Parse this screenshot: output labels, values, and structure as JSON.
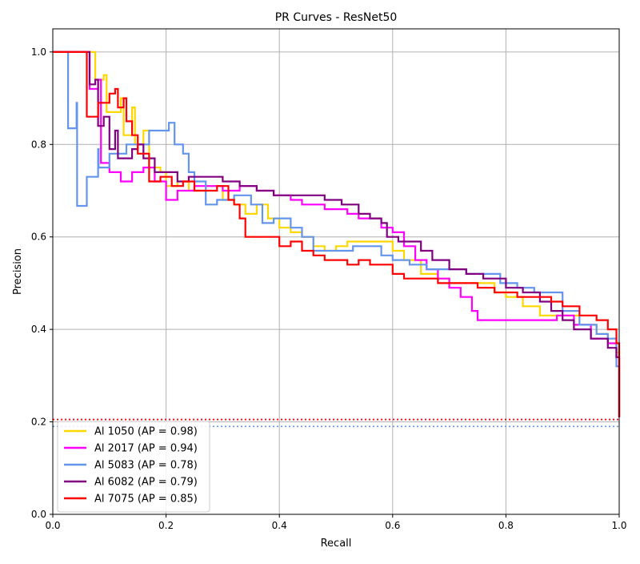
{
  "chart_data": {
    "type": "line",
    "title": "PR Curves - ResNet50",
    "xlabel": "Recall",
    "ylabel": "Precision",
    "xlim": [
      0.0,
      1.0
    ],
    "ylim": [
      0.0,
      1.05
    ],
    "xticks": [
      "0.0",
      "0.2",
      "0.4",
      "0.6",
      "0.8",
      "1.0"
    ],
    "yticks": [
      "0.0",
      "0.2",
      "0.4",
      "0.6",
      "0.8",
      "1.0"
    ],
    "grid": true,
    "legend_position": "lower-left",
    "series": [
      {
        "name": "Al 1050 (AP = 0.98)",
        "color": "#FFD700",
        "baseline": 0.205,
        "points": [
          [
            0.0,
            1.0
          ],
          [
            0.07,
            1.0
          ],
          [
            0.075,
            0.94
          ],
          [
            0.09,
            0.95
          ],
          [
            0.095,
            0.87
          ],
          [
            0.12,
            0.9
          ],
          [
            0.125,
            0.82
          ],
          [
            0.14,
            0.88
          ],
          [
            0.145,
            0.8
          ],
          [
            0.16,
            0.83
          ],
          [
            0.17,
            0.75
          ],
          [
            0.19,
            0.74
          ],
          [
            0.2,
            0.71
          ],
          [
            0.22,
            0.72
          ],
          [
            0.24,
            0.7
          ],
          [
            0.27,
            0.71
          ],
          [
            0.3,
            0.68
          ],
          [
            0.32,
            0.67
          ],
          [
            0.34,
            0.65
          ],
          [
            0.36,
            0.67
          ],
          [
            0.38,
            0.64
          ],
          [
            0.4,
            0.62
          ],
          [
            0.42,
            0.61
          ],
          [
            0.44,
            0.6
          ],
          [
            0.46,
            0.58
          ],
          [
            0.48,
            0.57
          ],
          [
            0.5,
            0.58
          ],
          [
            0.52,
            0.59
          ],
          [
            0.55,
            0.59
          ],
          [
            0.58,
            0.59
          ],
          [
            0.6,
            0.57
          ],
          [
            0.62,
            0.55
          ],
          [
            0.65,
            0.52
          ],
          [
            0.68,
            0.51
          ],
          [
            0.7,
            0.5
          ],
          [
            0.74,
            0.5
          ],
          [
            0.78,
            0.48
          ],
          [
            0.8,
            0.47
          ],
          [
            0.83,
            0.45
          ],
          [
            0.86,
            0.43
          ],
          [
            0.9,
            0.43
          ],
          [
            0.93,
            0.41
          ],
          [
            0.96,
            0.39
          ],
          [
            0.98,
            0.37
          ],
          [
            0.995,
            0.35
          ],
          [
            1.0,
            0.21
          ]
        ]
      },
      {
        "name": "Al 2017 (AP = 0.94)",
        "color": "#FF00FF",
        "baseline": 0.205,
        "points": [
          [
            0.0,
            1.0
          ],
          [
            0.06,
            1.0
          ],
          [
            0.065,
            0.92
          ],
          [
            0.08,
            0.94
          ],
          [
            0.085,
            0.76
          ],
          [
            0.1,
            0.74
          ],
          [
            0.12,
            0.72
          ],
          [
            0.14,
            0.74
          ],
          [
            0.16,
            0.75
          ],
          [
            0.18,
            0.72
          ],
          [
            0.2,
            0.68
          ],
          [
            0.22,
            0.7
          ],
          [
            0.25,
            0.71
          ],
          [
            0.28,
            0.71
          ],
          [
            0.3,
            0.7
          ],
          [
            0.33,
            0.71
          ],
          [
            0.36,
            0.7
          ],
          [
            0.39,
            0.69
          ],
          [
            0.42,
            0.68
          ],
          [
            0.44,
            0.67
          ],
          [
            0.46,
            0.67
          ],
          [
            0.48,
            0.66
          ],
          [
            0.5,
            0.66
          ],
          [
            0.52,
            0.65
          ],
          [
            0.54,
            0.64
          ],
          [
            0.56,
            0.64
          ],
          [
            0.58,
            0.62
          ],
          [
            0.6,
            0.61
          ],
          [
            0.62,
            0.58
          ],
          [
            0.64,
            0.55
          ],
          [
            0.66,
            0.53
          ],
          [
            0.68,
            0.51
          ],
          [
            0.7,
            0.49
          ],
          [
            0.72,
            0.47
          ],
          [
            0.74,
            0.44
          ],
          [
            0.75,
            0.42
          ],
          [
            0.77,
            0.42
          ],
          [
            0.8,
            0.42
          ],
          [
            0.83,
            0.42
          ],
          [
            0.86,
            0.42
          ],
          [
            0.89,
            0.43
          ],
          [
            0.92,
            0.41
          ],
          [
            0.95,
            0.38
          ],
          [
            0.98,
            0.37
          ],
          [
            0.995,
            0.34
          ],
          [
            1.0,
            0.21
          ]
        ]
      },
      {
        "name": "Al 5083 (AP = 0.78)",
        "color": "#6495ED",
        "baseline": 0.19,
        "points": [
          [
            0.0,
            1.0
          ],
          [
            0.025,
            1.0
          ],
          [
            0.027,
            0.835
          ],
          [
            0.042,
            0.89
          ],
          [
            0.043,
            0.667
          ],
          [
            0.06,
            0.73
          ],
          [
            0.08,
            0.79
          ],
          [
            0.081,
            0.75
          ],
          [
            0.1,
            0.78
          ],
          [
            0.13,
            0.8
          ],
          [
            0.17,
            0.83
          ],
          [
            0.205,
            0.847
          ],
          [
            0.215,
            0.8
          ],
          [
            0.23,
            0.78
          ],
          [
            0.24,
            0.74
          ],
          [
            0.25,
            0.72
          ],
          [
            0.27,
            0.67
          ],
          [
            0.29,
            0.68
          ],
          [
            0.32,
            0.69
          ],
          [
            0.35,
            0.67
          ],
          [
            0.37,
            0.63
          ],
          [
            0.39,
            0.64
          ],
          [
            0.42,
            0.62
          ],
          [
            0.44,
            0.6
          ],
          [
            0.46,
            0.57
          ],
          [
            0.5,
            0.57
          ],
          [
            0.53,
            0.58
          ],
          [
            0.56,
            0.58
          ],
          [
            0.58,
            0.56
          ],
          [
            0.6,
            0.55
          ],
          [
            0.63,
            0.54
          ],
          [
            0.66,
            0.53
          ],
          [
            0.7,
            0.53
          ],
          [
            0.73,
            0.52
          ],
          [
            0.76,
            0.52
          ],
          [
            0.79,
            0.5
          ],
          [
            0.82,
            0.49
          ],
          [
            0.85,
            0.48
          ],
          [
            0.88,
            0.48
          ],
          [
            0.9,
            0.44
          ],
          [
            0.92,
            0.44
          ],
          [
            0.93,
            0.41
          ],
          [
            0.96,
            0.39
          ],
          [
            0.98,
            0.38
          ],
          [
            0.995,
            0.32
          ],
          [
            1.0,
            0.21
          ]
        ]
      },
      {
        "name": "Al 6082 (AP = 0.79)",
        "color": "#800080",
        "baseline": 0.205,
        "points": [
          [
            0.0,
            1.0
          ],
          [
            0.06,
            1.0
          ],
          [
            0.065,
            0.93
          ],
          [
            0.075,
            0.94
          ],
          [
            0.08,
            0.84
          ],
          [
            0.09,
            0.86
          ],
          [
            0.1,
            0.79
          ],
          [
            0.11,
            0.83
          ],
          [
            0.115,
            0.77
          ],
          [
            0.14,
            0.79
          ],
          [
            0.15,
            0.8
          ],
          [
            0.16,
            0.77
          ],
          [
            0.18,
            0.74
          ],
          [
            0.2,
            0.74
          ],
          [
            0.22,
            0.72
          ],
          [
            0.24,
            0.73
          ],
          [
            0.27,
            0.73
          ],
          [
            0.3,
            0.72
          ],
          [
            0.33,
            0.71
          ],
          [
            0.36,
            0.7
          ],
          [
            0.39,
            0.69
          ],
          [
            0.42,
            0.69
          ],
          [
            0.45,
            0.69
          ],
          [
            0.48,
            0.68
          ],
          [
            0.51,
            0.67
          ],
          [
            0.54,
            0.65
          ],
          [
            0.56,
            0.64
          ],
          [
            0.58,
            0.63
          ],
          [
            0.59,
            0.6
          ],
          [
            0.61,
            0.59
          ],
          [
            0.63,
            0.59
          ],
          [
            0.65,
            0.57
          ],
          [
            0.67,
            0.55
          ],
          [
            0.7,
            0.53
          ],
          [
            0.73,
            0.52
          ],
          [
            0.76,
            0.51
          ],
          [
            0.8,
            0.49
          ],
          [
            0.83,
            0.48
          ],
          [
            0.86,
            0.46
          ],
          [
            0.88,
            0.44
          ],
          [
            0.9,
            0.42
          ],
          [
            0.92,
            0.4
          ],
          [
            0.95,
            0.38
          ],
          [
            0.98,
            0.36
          ],
          [
            0.995,
            0.34
          ],
          [
            1.0,
            0.21
          ]
        ]
      },
      {
        "name": "Al 7075 (AP = 0.85)",
        "color": "#FF0000",
        "baseline": 0.205,
        "points": [
          [
            0.0,
            1.0
          ],
          [
            0.058,
            1.0
          ],
          [
            0.06,
            0.86
          ],
          [
            0.08,
            0.89
          ],
          [
            0.1,
            0.91
          ],
          [
            0.11,
            0.92
          ],
          [
            0.115,
            0.88
          ],
          [
            0.125,
            0.9
          ],
          [
            0.13,
            0.85
          ],
          [
            0.14,
            0.82
          ],
          [
            0.15,
            0.78
          ],
          [
            0.17,
            0.72
          ],
          [
            0.19,
            0.73
          ],
          [
            0.21,
            0.71
          ],
          [
            0.23,
            0.72
          ],
          [
            0.25,
            0.7
          ],
          [
            0.27,
            0.7
          ],
          [
            0.29,
            0.71
          ],
          [
            0.31,
            0.68
          ],
          [
            0.32,
            0.67
          ],
          [
            0.33,
            0.64
          ],
          [
            0.34,
            0.6
          ],
          [
            0.37,
            0.6
          ],
          [
            0.39,
            0.6
          ],
          [
            0.4,
            0.58
          ],
          [
            0.42,
            0.59
          ],
          [
            0.44,
            0.57
          ],
          [
            0.46,
            0.56
          ],
          [
            0.48,
            0.55
          ],
          [
            0.5,
            0.55
          ],
          [
            0.52,
            0.54
          ],
          [
            0.54,
            0.55
          ],
          [
            0.56,
            0.54
          ],
          [
            0.58,
            0.54
          ],
          [
            0.6,
            0.52
          ],
          [
            0.62,
            0.51
          ],
          [
            0.65,
            0.51
          ],
          [
            0.68,
            0.5
          ],
          [
            0.72,
            0.5
          ],
          [
            0.75,
            0.49
          ],
          [
            0.78,
            0.48
          ],
          [
            0.82,
            0.47
          ],
          [
            0.86,
            0.47
          ],
          [
            0.88,
            0.46
          ],
          [
            0.9,
            0.45
          ],
          [
            0.93,
            0.43
          ],
          [
            0.96,
            0.42
          ],
          [
            0.98,
            0.4
          ],
          [
            0.995,
            0.37
          ],
          [
            1.0,
            0.21
          ]
        ]
      }
    ]
  }
}
